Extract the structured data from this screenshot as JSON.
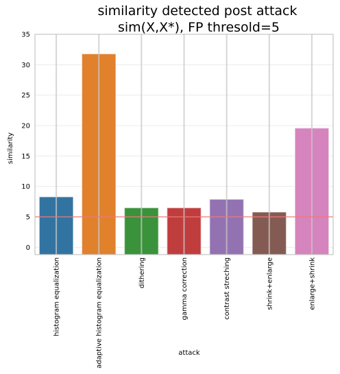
{
  "chart_data": {
    "type": "bar",
    "title_lines": [
      "similarity detected post attack",
      "sim(X,X*), FP thresold=5"
    ],
    "xlabel": "attack",
    "ylabel": "similarity",
    "categories": [
      "histogram equalization",
      "adaptive histogram equalization",
      "dithering",
      "gamma correction",
      "contrast streching",
      "shrink+enlarge",
      "enlarge+shrink"
    ],
    "values": [
      8.3,
      31.8,
      6.5,
      6.5,
      7.9,
      5.8,
      19.6
    ],
    "colors": [
      "#3274a1",
      "#e1812c",
      "#3a923a",
      "#c03d3e",
      "#9372b2",
      "#845b53",
      "#d684bd"
    ],
    "ylim": [
      -1.2,
      35
    ],
    "yticks": [
      0,
      5,
      10,
      15,
      20,
      25,
      30,
      35
    ],
    "threshold": {
      "value": 5,
      "color": "#ef7777"
    },
    "grid": true,
    "legend": "none"
  }
}
